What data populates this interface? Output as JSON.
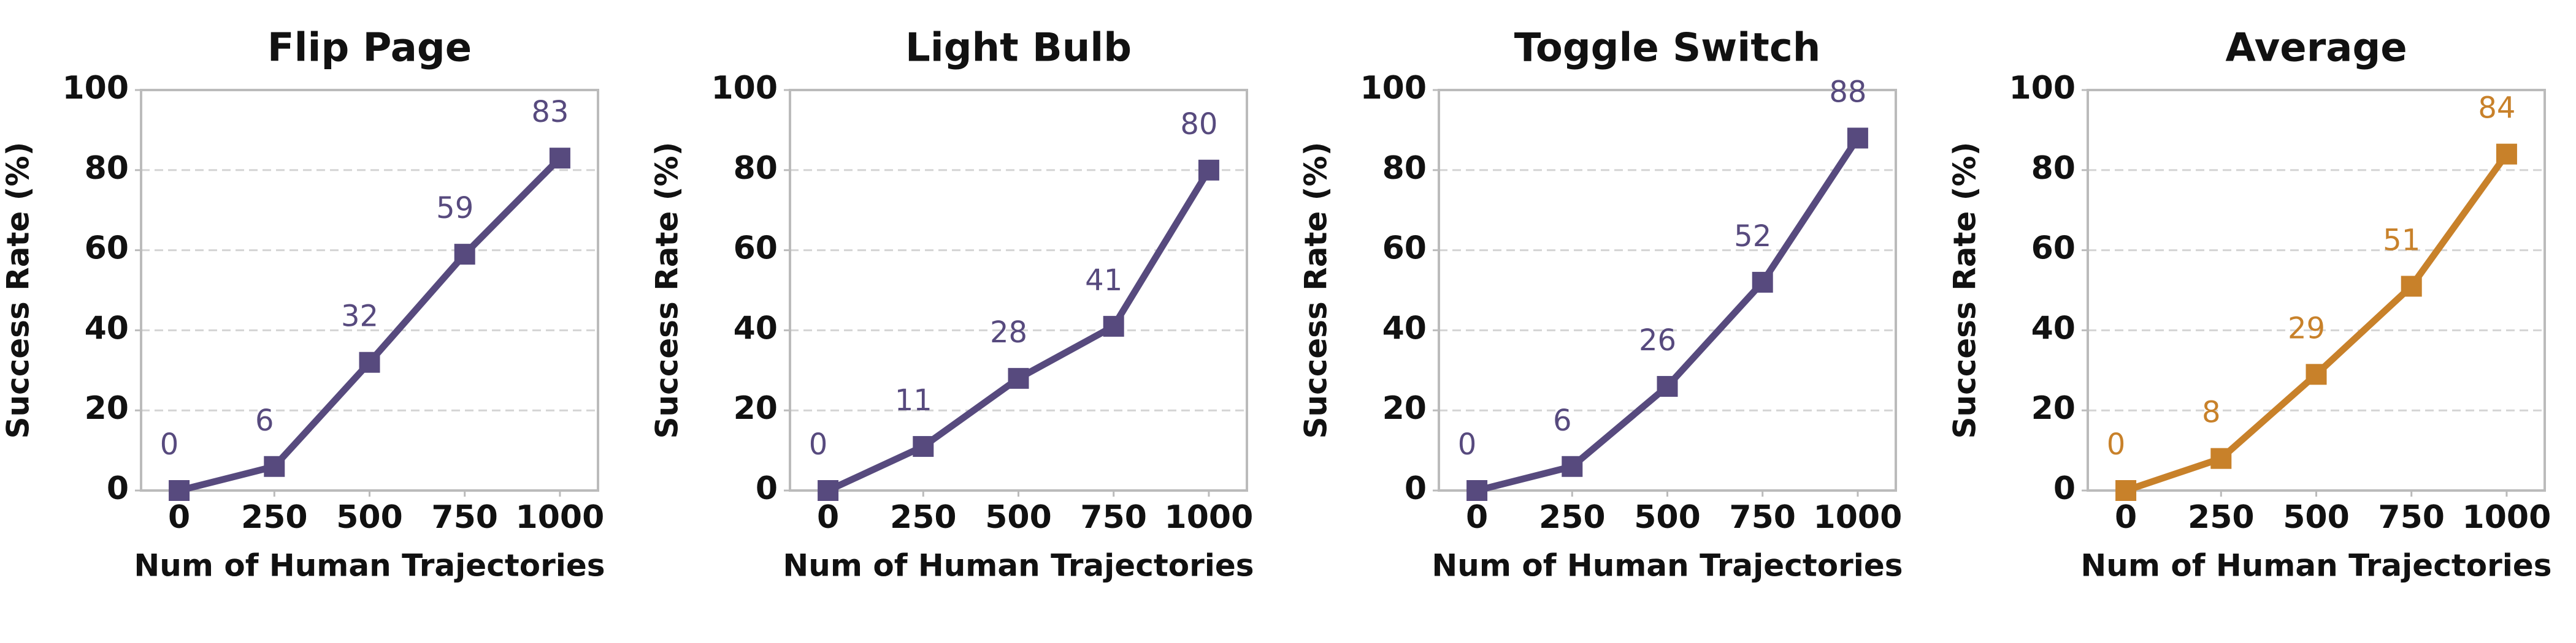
{
  "chart_data": [
    {
      "type": "line",
      "title": "Flip Page",
      "xlabel": "Num of Human Trajectories",
      "ylabel": "Success Rate (%)",
      "x": [
        0,
        250,
        500,
        750,
        1000
      ],
      "values": [
        0,
        6,
        32,
        59,
        83
      ],
      "color": "#574a7e",
      "xlim": [
        -100,
        1100
      ],
      "xticks": [
        0,
        250,
        500,
        750,
        1000
      ],
      "ylim": [
        0,
        100
      ],
      "yticks": [
        0,
        20,
        40,
        60,
        80,
        100
      ],
      "grid": true
    },
    {
      "type": "line",
      "title": "Light Bulb",
      "xlabel": "Num of Human Trajectories",
      "ylabel": "Success Rate (%)",
      "x": [
        0,
        250,
        500,
        750,
        1000
      ],
      "values": [
        0,
        11,
        28,
        41,
        80
      ],
      "color": "#574a7e",
      "xlim": [
        -100,
        1100
      ],
      "xticks": [
        0,
        250,
        500,
        750,
        1000
      ],
      "ylim": [
        0,
        100
      ],
      "yticks": [
        0,
        20,
        40,
        60,
        80,
        100
      ],
      "grid": true
    },
    {
      "type": "line",
      "title": "Toggle Switch",
      "xlabel": "Num of Human Trajectories",
      "ylabel": "Success Rate (%)",
      "x": [
        0,
        250,
        500,
        750,
        1000
      ],
      "values": [
        0,
        6,
        26,
        52,
        88
      ],
      "color": "#574a7e",
      "xlim": [
        -100,
        1100
      ],
      "xticks": [
        0,
        250,
        500,
        750,
        1000
      ],
      "ylim": [
        0,
        100
      ],
      "yticks": [
        0,
        20,
        40,
        60,
        80,
        100
      ],
      "grid": true
    },
    {
      "type": "line",
      "title": "Average",
      "xlabel": "Num of Human Trajectories",
      "ylabel": "Success Rate (%)",
      "x": [
        0,
        250,
        500,
        750,
        1000
      ],
      "values": [
        0,
        8,
        29,
        51,
        84
      ],
      "color": "#c8812a",
      "xlim": [
        -100,
        1100
      ],
      "xticks": [
        0,
        250,
        500,
        750,
        1000
      ],
      "ylim": [
        0,
        100
      ],
      "yticks": [
        0,
        20,
        40,
        60,
        80,
        100
      ],
      "grid": true
    }
  ]
}
